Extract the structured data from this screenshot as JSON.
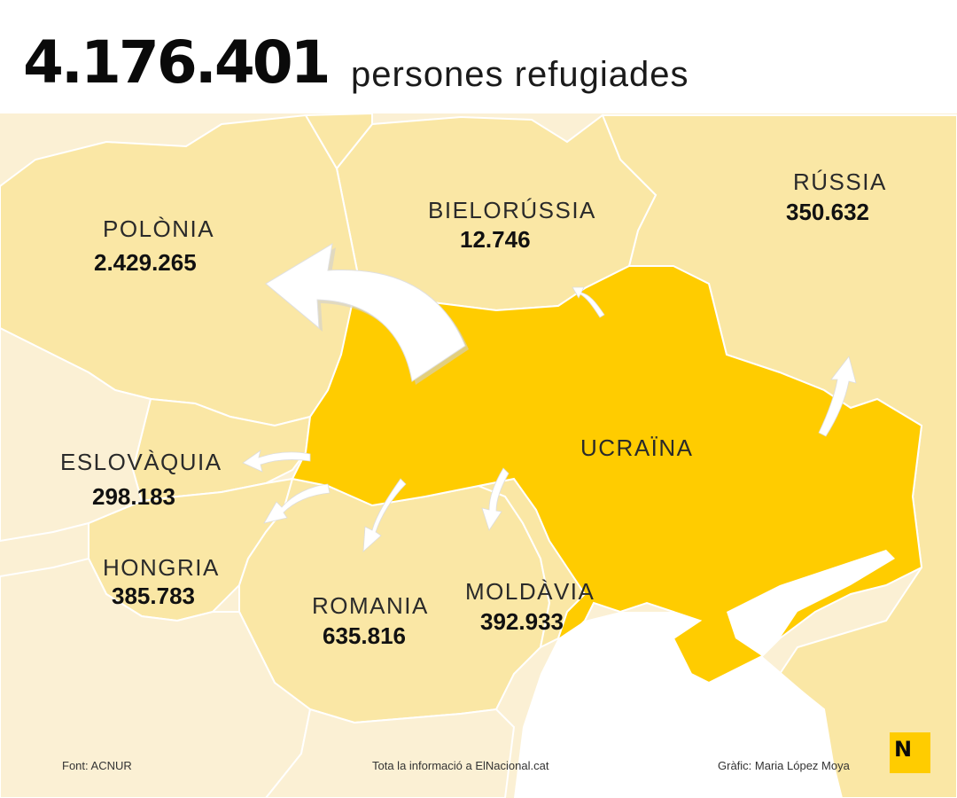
{
  "header": {
    "total": "4.176.401",
    "subtitle": "persones refugiades"
  },
  "countries": [
    {
      "id": "polonia",
      "name": "POLÒNIA",
      "value": "2.429.265"
    },
    {
      "id": "bielorussia",
      "name": "BIELORÚSSIA",
      "value": "12.746"
    },
    {
      "id": "russia",
      "name": "RÚSSIA",
      "value": "350.632"
    },
    {
      "id": "eslovaquia",
      "name": "ESLOVÀQUIA",
      "value": "298.183"
    },
    {
      "id": "hongria",
      "name": "HONGRIA",
      "value": "385.783"
    },
    {
      "id": "romania",
      "name": "ROMANIA",
      "value": "635.816"
    },
    {
      "id": "moldavia",
      "name": "MOLDÀVIA",
      "value": "392.933"
    }
  ],
  "origin": {
    "name": "UCRAÏNA"
  },
  "footer": {
    "source": "Font: ACNUR",
    "more": "Tota la informació a ElNacional.cat",
    "credit": "Gràfic: Maria López Moya"
  },
  "logo": {
    "letter": "N"
  },
  "colors": {
    "highlight": "#ffcc00",
    "neighbor": "#fae7a5",
    "background_land": "#fbf0d4",
    "sea": "#ffffff",
    "border": "#ffffff",
    "text": "#111111"
  }
}
